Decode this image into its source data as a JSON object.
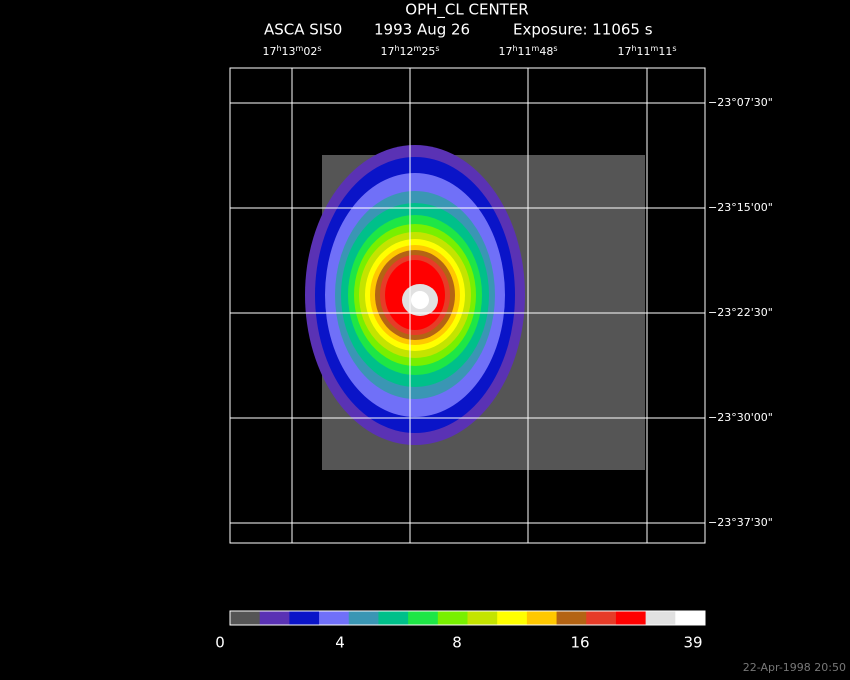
{
  "header": {
    "title": "OPH_CL CENTER",
    "instrument": "ASCA SIS0",
    "date": "1993 Aug 26",
    "exposure": "Exposure: 11065 s"
  },
  "ra_labels": [
    [
      "17",
      "h",
      "13",
      "m",
      "02",
      "s"
    ],
    [
      "17",
      "h",
      "12",
      "m",
      "25",
      "s"
    ],
    [
      "17",
      "h",
      "11",
      "m",
      "48",
      "s"
    ],
    [
      "17",
      "h",
      "11",
      "m",
      "11",
      "s"
    ]
  ],
  "dec_labels": [
    "−23°07'30\"",
    "−23°15'00\"",
    "−23°22'30\"",
    "−23°30'00\"",
    "−23°37'30\""
  ],
  "colorbar": {
    "colors": [
      "#555555",
      "#5a32b4",
      "#0a14c8",
      "#7070f8",
      "#3a96b4",
      "#00c08a",
      "#1ee646",
      "#78f000",
      "#c4e400",
      "#ffff00",
      "#ffc800",
      "#b46414",
      "#e63c28",
      "#ff0000",
      "#e1e1e1",
      "#ffffff"
    ],
    "ticks": [
      0,
      4,
      8,
      16,
      39
    ]
  },
  "footer": {
    "timestamp": "22-Apr-1998 20:50"
  }
}
